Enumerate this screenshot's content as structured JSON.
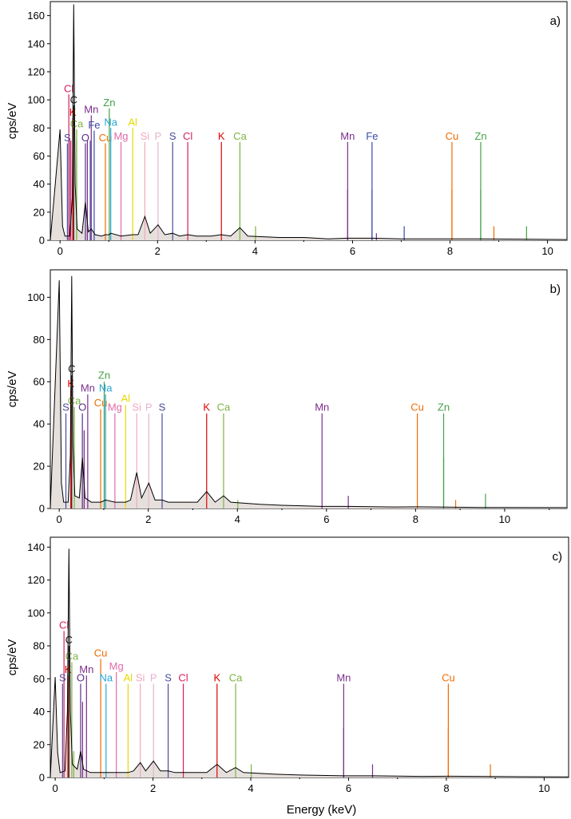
{
  "colors": {
    "C": "#1a1a1a",
    "O": "#5a2d8a",
    "Cl": "#d81b60",
    "K": "#e00000",
    "Ca": "#7cb342",
    "Mn": "#7b2d8b",
    "Fe": "#3949ab",
    "Zn": "#43a047",
    "Na": "#26a5d6",
    "Cu": "#ef6c00",
    "Al": "#e6d800",
    "Mg": "#e26aa8",
    "Si": "#f1a7c1",
    "P": "#e5b3cf",
    "S": "#4a4a9a"
  },
  "chart_data": [
    {
      "type": "line",
      "panel_label": "a)",
      "ylabel": "cps/eV",
      "xlabel": "",
      "xlim": [
        -0.2,
        10.4
      ],
      "ylim": [
        0,
        170
      ],
      "xticks": [
        "0",
        "2",
        "4",
        "6",
        "8",
        "10"
      ],
      "yticks": [
        "0",
        "20",
        "40",
        "60",
        "80",
        "100",
        "120",
        "140",
        "160"
      ],
      "element_markers": [
        {
          "el": "C",
          "x": 0.28,
          "h": 97,
          "label": "C"
        },
        {
          "el": "O",
          "x": 0.52,
          "h": 70,
          "label": "O"
        },
        {
          "el": "Cl",
          "x": 0.18,
          "h": 105,
          "label": "Cl"
        },
        {
          "el": "K",
          "x": 0.26,
          "h": 88,
          "label": "K"
        },
        {
          "el": "Ca",
          "x": 0.34,
          "h": 80,
          "label": "Ca"
        },
        {
          "el": "S",
          "x": 0.15,
          "h": 70,
          "label": "S"
        },
        {
          "el": "Mn",
          "x": 0.64,
          "h": 90,
          "label": "Mn"
        },
        {
          "el": "Fe",
          "x": 0.7,
          "h": 79,
          "label": "Fe"
        },
        {
          "el": "Cu",
          "x": 0.93,
          "h": 70,
          "label": "Cu"
        },
        {
          "el": "Zn",
          "x": 1.01,
          "h": 95,
          "label": "Zn"
        },
        {
          "el": "Na",
          "x": 1.04,
          "h": 81,
          "label": "Na"
        },
        {
          "el": "Mg",
          "x": 1.25,
          "h": 71,
          "label": "Mg"
        },
        {
          "el": "Al",
          "x": 1.49,
          "h": 81,
          "label": "Al"
        },
        {
          "el": "Si",
          "x": 1.74,
          "h": 71,
          "label": "Si"
        },
        {
          "el": "P",
          "x": 2.01,
          "h": 71,
          "label": "P"
        },
        {
          "el": "S",
          "x": 2.31,
          "h": 71,
          "label": "S"
        },
        {
          "el": "Cl",
          "x": 2.62,
          "h": 71,
          "label": "Cl"
        },
        {
          "el": "K",
          "x": 3.31,
          "h": 71,
          "label": "K"
        },
        {
          "el": "Ca",
          "x": 3.69,
          "h": 71,
          "label": "Ca"
        },
        {
          "el": "Mn",
          "x": 5.9,
          "h": 71,
          "label": "Mn"
        },
        {
          "el": "Fe",
          "x": 6.4,
          "h": 71,
          "label": "Fe"
        },
        {
          "el": "Cu",
          "x": 8.04,
          "h": 71,
          "label": "Cu"
        },
        {
          "el": "Zn",
          "x": 8.63,
          "h": 71,
          "label": "Zn"
        }
      ],
      "minor_lines": [
        {
          "el": "Ca",
          "x": 0.34,
          "h": 71
        },
        {
          "el": "S",
          "x": 0.19,
          "h": 71
        },
        {
          "el": "Cl",
          "x": 0.22,
          "h": 71
        },
        {
          "el": "Mn",
          "x": 0.56,
          "h": 71
        },
        {
          "el": "Fe",
          "x": 0.62,
          "h": 71
        },
        {
          "el": "Ca",
          "x": 3.69,
          "h": 35
        },
        {
          "el": "Mn",
          "x": 5.9,
          "h": 36
        },
        {
          "el": "Fe",
          "x": 6.4,
          "h": 36
        },
        {
          "el": "Fe",
          "x": 7.06,
          "h": 10
        },
        {
          "el": "Cu",
          "x": 8.04,
          "h": 36
        },
        {
          "el": "Cu",
          "x": 8.9,
          "h": 10
        },
        {
          "el": "Zn",
          "x": 8.63,
          "h": 36
        },
        {
          "el": "Zn",
          "x": 9.57,
          "h": 10
        },
        {
          "el": "Mn",
          "x": 6.49,
          "h": 5
        },
        {
          "el": "Ca",
          "x": 4.01,
          "h": 10
        }
      ],
      "spectrum": [
        [
          -0.2,
          0
        ],
        [
          0.0,
          79
        ],
        [
          0.05,
          10
        ],
        [
          0.1,
          3
        ],
        [
          0.2,
          3
        ],
        [
          0.25,
          30
        ],
        [
          0.28,
          168
        ],
        [
          0.31,
          40
        ],
        [
          0.35,
          8
        ],
        [
          0.45,
          5
        ],
        [
          0.52,
          27
        ],
        [
          0.58,
          6
        ],
        [
          0.64,
          8
        ],
        [
          0.72,
          4
        ],
        [
          0.85,
          3
        ],
        [
          0.93,
          4
        ],
        [
          1.01,
          4
        ],
        [
          1.04,
          5
        ],
        [
          1.25,
          3
        ],
        [
          1.49,
          4
        ],
        [
          1.6,
          4
        ],
        [
          1.74,
          17
        ],
        [
          1.85,
          5
        ],
        [
          2.01,
          11
        ],
        [
          2.15,
          4
        ],
        [
          2.31,
          5
        ],
        [
          2.45,
          3
        ],
        [
          2.62,
          4
        ],
        [
          2.8,
          3
        ],
        [
          3.1,
          3
        ],
        [
          3.31,
          4
        ],
        [
          3.5,
          3
        ],
        [
          3.69,
          9
        ],
        [
          3.85,
          3
        ],
        [
          4.5,
          2
        ],
        [
          5.0,
          2
        ],
        [
          5.5,
          1
        ],
        [
          5.9,
          1.5
        ],
        [
          6.4,
          1.5
        ],
        [
          7.0,
          1
        ],
        [
          8.04,
          1
        ],
        [
          8.6,
          1
        ],
        [
          9.5,
          0.8
        ],
        [
          10.4,
          0.5
        ]
      ]
    },
    {
      "type": "line",
      "panel_label": "b)",
      "ylabel": "cps/eV",
      "xlabel": "",
      "xlim": [
        -0.2,
        11.4
      ],
      "ylim": [
        0,
        113
      ],
      "xticks": [
        "0",
        "2",
        "4",
        "6",
        "8",
        "10"
      ],
      "yticks": [
        "0",
        "20",
        "40",
        "60",
        "80",
        "100"
      ],
      "element_markers": [
        {
          "el": "C",
          "x": 0.28,
          "h": 64,
          "label": "C"
        },
        {
          "el": "K",
          "x": 0.26,
          "h": 57,
          "label": "K"
        },
        {
          "el": "Ca",
          "x": 0.34,
          "h": 49,
          "label": "Ca"
        },
        {
          "el": "S",
          "x": 0.15,
          "h": 46,
          "label": "S"
        },
        {
          "el": "O",
          "x": 0.52,
          "h": 46,
          "label": "O"
        },
        {
          "el": "Mn",
          "x": 0.64,
          "h": 55,
          "label": "Mn"
        },
        {
          "el": "Cu",
          "x": 0.93,
          "h": 48,
          "label": "Cu"
        },
        {
          "el": "Zn",
          "x": 1.01,
          "h": 61,
          "label": "Zn"
        },
        {
          "el": "Na",
          "x": 1.04,
          "h": 55,
          "label": "Na"
        },
        {
          "el": "Mg",
          "x": 1.25,
          "h": 46,
          "label": "Mg"
        },
        {
          "el": "Al",
          "x": 1.49,
          "h": 50,
          "label": "Al"
        },
        {
          "el": "Si",
          "x": 1.74,
          "h": 46,
          "label": "Si"
        },
        {
          "el": "P",
          "x": 2.01,
          "h": 46,
          "label": "P"
        },
        {
          "el": "S",
          "x": 2.31,
          "h": 46,
          "label": "S"
        },
        {
          "el": "K",
          "x": 3.31,
          "h": 46,
          "label": "K"
        },
        {
          "el": "Ca",
          "x": 3.69,
          "h": 46,
          "label": "Ca"
        },
        {
          "el": "Mn",
          "x": 5.9,
          "h": 46,
          "label": "Mn"
        },
        {
          "el": "Cu",
          "x": 8.04,
          "h": 46,
          "label": "Cu"
        },
        {
          "el": "Zn",
          "x": 8.63,
          "h": 46,
          "label": "Zn"
        }
      ],
      "minor_lines": [
        {
          "el": "Mn",
          "x": 0.56,
          "h": 37
        },
        {
          "el": "Zn",
          "x": 8.63,
          "h": 24
        },
        {
          "el": "Mn",
          "x": 6.49,
          "h": 6
        },
        {
          "el": "Zn",
          "x": 9.57,
          "h": 7
        },
        {
          "el": "Cu",
          "x": 8.9,
          "h": 4
        },
        {
          "el": "Ca",
          "x": 4.01,
          "h": 4
        }
      ],
      "spectrum": [
        [
          -0.2,
          0
        ],
        [
          0.0,
          108
        ],
        [
          0.05,
          12
        ],
        [
          0.1,
          3
        ],
        [
          0.2,
          3
        ],
        [
          0.25,
          25
        ],
        [
          0.28,
          110
        ],
        [
          0.31,
          30
        ],
        [
          0.35,
          6
        ],
        [
          0.45,
          5
        ],
        [
          0.52,
          24
        ],
        [
          0.58,
          5
        ],
        [
          0.72,
          3
        ],
        [
          0.93,
          3
        ],
        [
          1.04,
          4
        ],
        [
          1.25,
          3
        ],
        [
          1.49,
          3
        ],
        [
          1.6,
          4
        ],
        [
          1.74,
          17
        ],
        [
          1.85,
          5
        ],
        [
          2.01,
          12
        ],
        [
          2.15,
          4
        ],
        [
          2.31,
          4
        ],
        [
          2.45,
          3
        ],
        [
          2.62,
          3
        ],
        [
          3.1,
          3
        ],
        [
          3.31,
          8
        ],
        [
          3.5,
          3
        ],
        [
          3.69,
          6
        ],
        [
          3.85,
          3
        ],
        [
          4.5,
          2
        ],
        [
          5.0,
          1.5
        ],
        [
          5.9,
          1
        ],
        [
          6.5,
          1
        ],
        [
          7.5,
          0.7
        ],
        [
          8.04,
          0.8
        ],
        [
          9.5,
          0.5
        ],
        [
          11.4,
          0.4
        ]
      ]
    },
    {
      "type": "line",
      "panel_label": "c)",
      "ylabel": "cps/eV",
      "xlabel": "Energy (keV)",
      "xlim": [
        -0.1,
        10.5
      ],
      "ylim": [
        0,
        146
      ],
      "xticks": [
        "0",
        "2",
        "4",
        "6",
        "8",
        "10"
      ],
      "yticks": [
        "0",
        "20",
        "40",
        "60",
        "80",
        "100",
        "120",
        "140"
      ],
      "element_markers": [
        {
          "el": "Cl",
          "x": 0.18,
          "h": 90,
          "label": "Cl"
        },
        {
          "el": "C",
          "x": 0.28,
          "h": 81,
          "label": "C"
        },
        {
          "el": "Ca",
          "x": 0.34,
          "h": 71,
          "label": "Ca"
        },
        {
          "el": "K",
          "x": 0.26,
          "h": 63,
          "label": "K"
        },
        {
          "el": "S",
          "x": 0.15,
          "h": 58,
          "label": "S"
        },
        {
          "el": "Mn",
          "x": 0.64,
          "h": 63,
          "label": "Mn"
        },
        {
          "el": "O",
          "x": 0.52,
          "h": 58,
          "label": "O"
        },
        {
          "el": "Cu",
          "x": 0.93,
          "h": 73,
          "label": "Cu"
        },
        {
          "el": "Mg",
          "x": 1.25,
          "h": 65,
          "label": "Mg"
        },
        {
          "el": "Na",
          "x": 1.04,
          "h": 58,
          "label": "Na"
        },
        {
          "el": "Al",
          "x": 1.49,
          "h": 58,
          "label": "Al"
        },
        {
          "el": "Si",
          "x": 1.74,
          "h": 58,
          "label": "Si"
        },
        {
          "el": "P",
          "x": 2.01,
          "h": 58,
          "label": "P"
        },
        {
          "el": "S",
          "x": 2.31,
          "h": 58,
          "label": "S"
        },
        {
          "el": "Cl",
          "x": 2.62,
          "h": 58,
          "label": "Cl"
        },
        {
          "el": "K",
          "x": 3.31,
          "h": 58,
          "label": "K"
        },
        {
          "el": "Ca",
          "x": 3.69,
          "h": 58,
          "label": "Ca"
        },
        {
          "el": "Mn",
          "x": 5.9,
          "h": 58,
          "label": "Mn"
        },
        {
          "el": "Cu",
          "x": 8.04,
          "h": 58,
          "label": "Cu"
        }
      ],
      "minor_lines": [
        {
          "el": "Mn",
          "x": 0.56,
          "h": 46
        },
        {
          "el": "Mn",
          "x": 5.9,
          "h": 30
        },
        {
          "el": "Cu",
          "x": 8.04,
          "h": 30
        },
        {
          "el": "Cu",
          "x": 8.9,
          "h": 8
        },
        {
          "el": "Mn",
          "x": 6.49,
          "h": 8
        },
        {
          "el": "Ca",
          "x": 4.01,
          "h": 8
        },
        {
          "el": "Ca",
          "x": 0.38,
          "h": 16
        }
      ],
      "spectrum": [
        [
          -0.1,
          0
        ],
        [
          0.0,
          61
        ],
        [
          0.05,
          15
        ],
        [
          0.1,
          3
        ],
        [
          0.2,
          4
        ],
        [
          0.25,
          40
        ],
        [
          0.28,
          139
        ],
        [
          0.31,
          40
        ],
        [
          0.35,
          8
        ],
        [
          0.45,
          5
        ],
        [
          0.52,
          16
        ],
        [
          0.58,
          5
        ],
        [
          0.72,
          3
        ],
        [
          0.93,
          3
        ],
        [
          1.04,
          3
        ],
        [
          1.25,
          3
        ],
        [
          1.49,
          3
        ],
        [
          1.6,
          4
        ],
        [
          1.74,
          9
        ],
        [
          1.85,
          4
        ],
        [
          2.01,
          10
        ],
        [
          2.15,
          4
        ],
        [
          2.31,
          4
        ],
        [
          2.45,
          3
        ],
        [
          2.62,
          3
        ],
        [
          3.1,
          3
        ],
        [
          3.31,
          8
        ],
        [
          3.5,
          3
        ],
        [
          3.69,
          6
        ],
        [
          3.85,
          3
        ],
        [
          4.5,
          2
        ],
        [
          5.0,
          1.5
        ],
        [
          5.9,
          1
        ],
        [
          6.5,
          1
        ],
        [
          7.5,
          0.7
        ],
        [
          8.04,
          0.8
        ],
        [
          9.5,
          0.5
        ],
        [
          10.5,
          0.4
        ]
      ]
    }
  ]
}
